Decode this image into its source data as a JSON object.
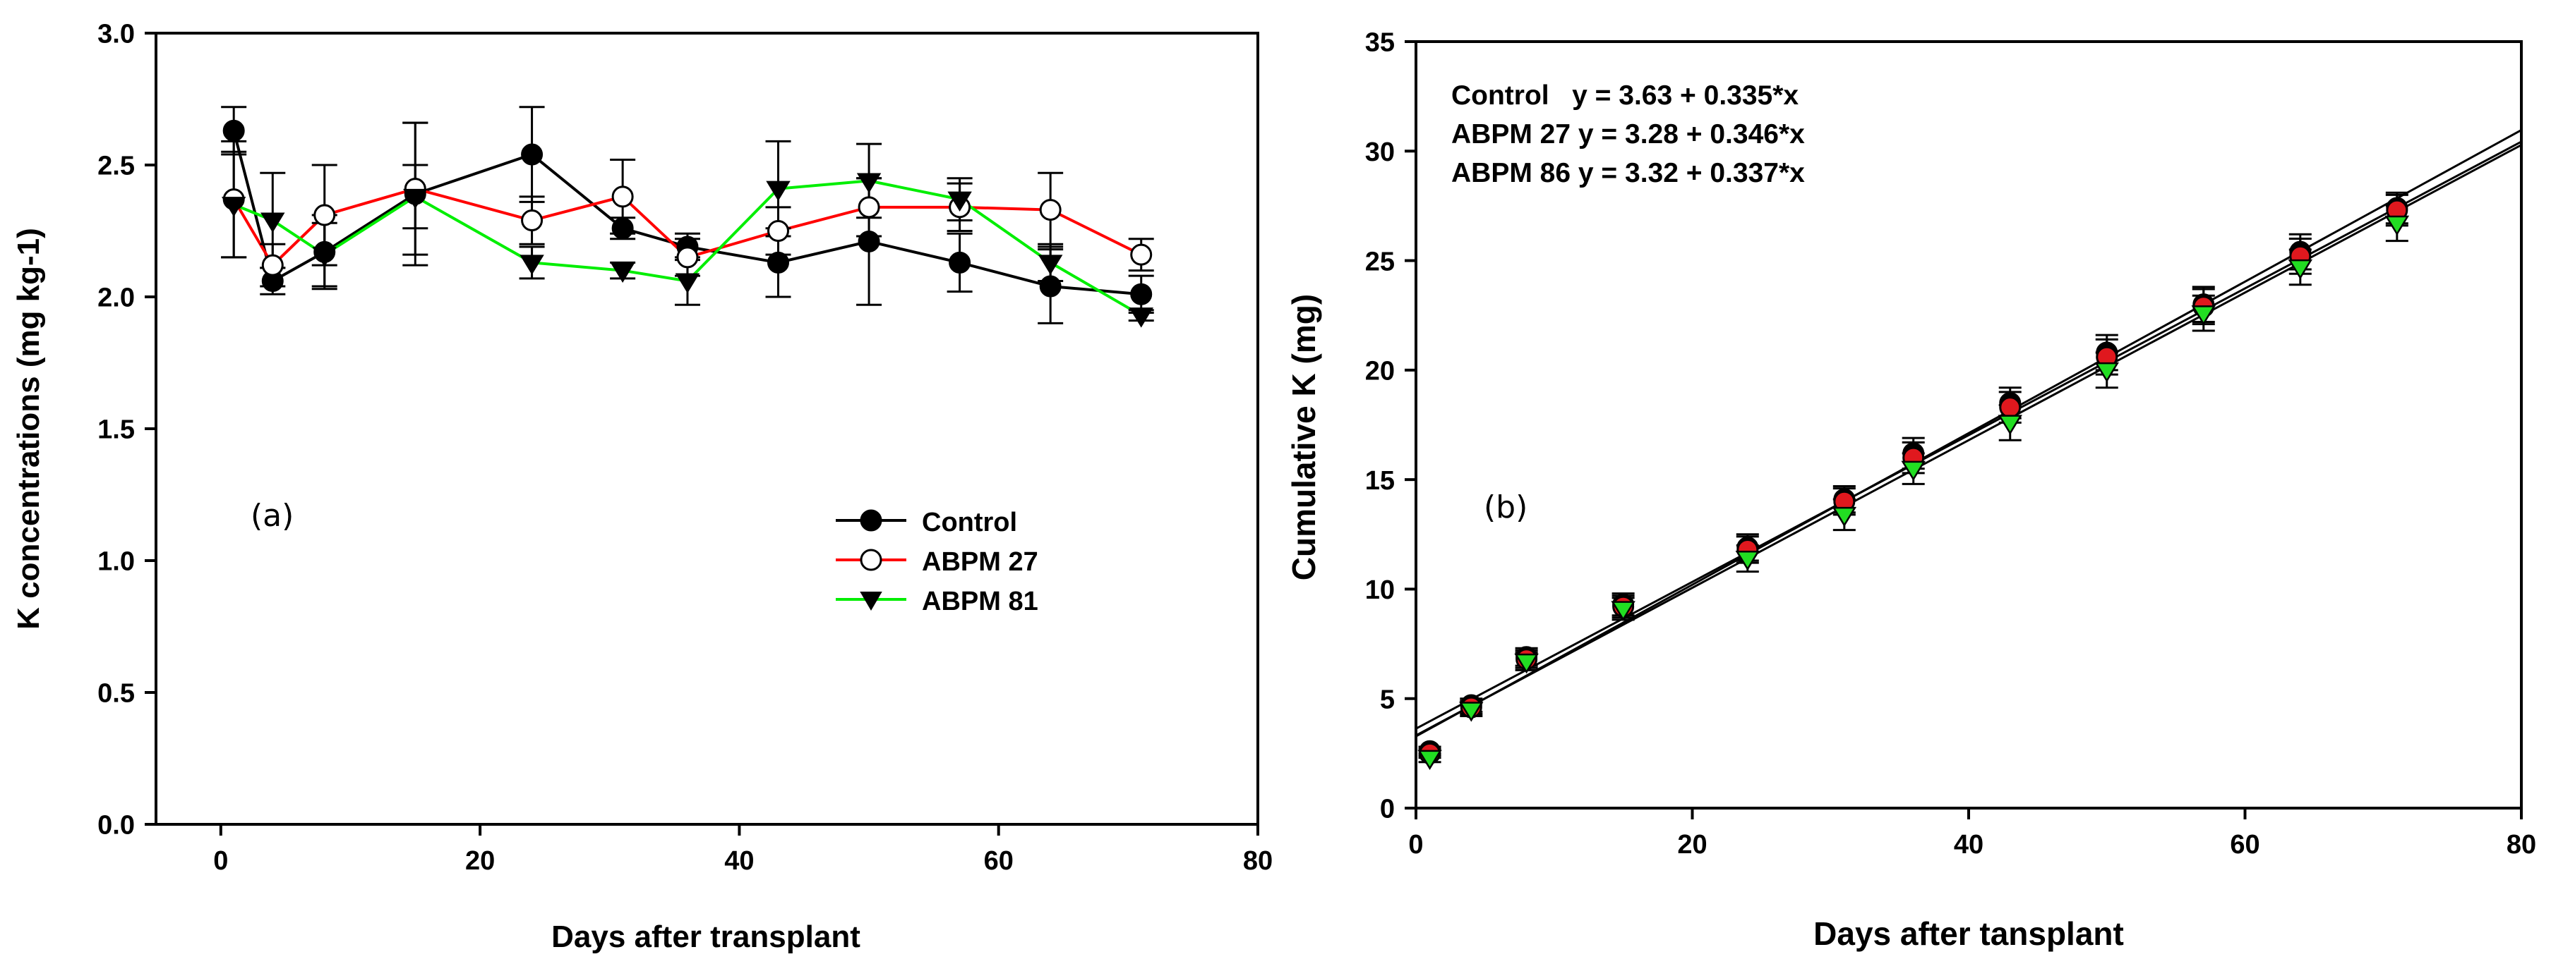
{
  "colors": {
    "control": "#000000",
    "abpm27_line": "#ff0000",
    "abpm81_line": "#00ee00",
    "abpm27_b_marker": "#e0181e",
    "abpm86_b_marker": "#22dd22",
    "axis": "#000000"
  },
  "chart_data": [
    {
      "type": "line",
      "panel_label": "(a)",
      "xlabel": "Days after transplant",
      "ylabel": "K concentrations (mg kg-1)",
      "xlim": [
        -5,
        80
      ],
      "ylim": [
        0,
        3
      ],
      "x_ticks": [
        0,
        20,
        40,
        60,
        80
      ],
      "y_ticks": [
        0.0,
        0.5,
        1.0,
        1.5,
        2.0,
        2.5,
        3.0
      ],
      "x_tick_labels": [
        "0",
        "20",
        "40",
        "60",
        "80"
      ],
      "y_tick_labels": [
        "0.0",
        "0.5",
        "1.0",
        "1.5",
        "2.0",
        "2.5",
        "3.0"
      ],
      "x": [
        1,
        4,
        8,
        15,
        24,
        31,
        36,
        43,
        50,
        57,
        64,
        71
      ],
      "legend_position": "center-right",
      "series": [
        {
          "name": "Control",
          "marker": "filled-circle",
          "values": [
            2.63,
            2.06,
            2.17,
            2.39,
            2.54,
            2.26,
            2.19,
            2.13,
            2.21,
            2.13,
            2.04,
            2.01
          ],
          "errors": [
            0.09,
            0.05,
            0.14,
            0.27,
            0.18,
            0.04,
            0.05,
            0.13,
            0.24,
            0.11,
            0.14,
            0.07
          ]
        },
        {
          "name": "ABPM 27",
          "marker": "open-circle",
          "values": [
            2.37,
            2.12,
            2.31,
            2.41,
            2.29,
            2.38,
            2.15,
            2.25,
            2.34,
            2.34,
            2.33,
            2.16
          ],
          "errors": [
            0.22,
            0.08,
            0.19,
            0.25,
            0.09,
            0.14,
            0.07,
            0.09,
            0.11,
            0.09,
            0.14,
            0.06
          ]
        },
        {
          "name": "ABPM 81",
          "marker": "filled-triangle-down",
          "values": [
            2.35,
            2.29,
            2.16,
            2.38,
            2.13,
            2.1,
            2.06,
            2.41,
            2.44,
            2.37,
            2.13,
            1.93
          ],
          "errors": [
            0.2,
            0.18,
            0.12,
            0.12,
            0.06,
            0.03,
            0.09,
            0.18,
            0.14,
            0.08,
            0.07,
            0.02
          ]
        }
      ]
    },
    {
      "type": "scatter",
      "panel_label": "(b)",
      "xlabel": "Days after tansplant",
      "ylabel": "Cumulative K (mg)",
      "xlim": [
        0,
        80
      ],
      "ylim": [
        0,
        35
      ],
      "x_ticks": [
        0,
        20,
        40,
        60,
        80
      ],
      "y_ticks": [
        0,
        5,
        10,
        15,
        20,
        25,
        30,
        35
      ],
      "x_tick_labels": [
        "0",
        "20",
        "40",
        "60",
        "80"
      ],
      "y_tick_labels": [
        "0",
        "5",
        "10",
        "15",
        "20",
        "25",
        "30",
        "35"
      ],
      "x": [
        1,
        4,
        8,
        15,
        24,
        31,
        36,
        43,
        50,
        57,
        64,
        71
      ],
      "equations": [
        "Control   y = 3.63 + 0.335*x",
        "ABPM 27 y = 3.28 + 0.346*x",
        "ABPM 86 y = 3.32 + 0.337*x"
      ],
      "series": [
        {
          "name": "Control",
          "marker": "filled-circle",
          "values": [
            2.6,
            4.7,
            6.9,
            9.3,
            11.9,
            14.1,
            16.2,
            18.5,
            20.8,
            23.0,
            25.4,
            27.4
          ],
          "errors": [
            0.2,
            0.3,
            0.4,
            0.5,
            0.6,
            0.6,
            0.7,
            0.7,
            0.8,
            0.8,
            0.8,
            0.7
          ],
          "intercept": 3.63,
          "slope": 0.335
        },
        {
          "name": "ABPM 27",
          "marker": "red-circle",
          "values": [
            2.5,
            4.6,
            6.8,
            9.2,
            11.8,
            14.0,
            16.0,
            18.3,
            20.6,
            22.9,
            25.2,
            27.3
          ],
          "errors": [
            0.2,
            0.3,
            0.4,
            0.5,
            0.6,
            0.6,
            0.7,
            0.7,
            0.8,
            0.8,
            0.8,
            0.7
          ],
          "intercept": 3.28,
          "slope": 0.346
        },
        {
          "name": "ABPM 86",
          "marker": "green-triangle-down",
          "values": [
            2.3,
            4.5,
            6.7,
            9.1,
            11.4,
            13.4,
            15.5,
            17.6,
            20.0,
            22.6,
            24.7,
            26.7
          ],
          "errors": [
            0.2,
            0.3,
            0.4,
            0.5,
            0.6,
            0.7,
            0.7,
            0.8,
            0.8,
            0.8,
            0.8,
            0.8
          ],
          "intercept": 3.32,
          "slope": 0.337
        }
      ]
    }
  ]
}
